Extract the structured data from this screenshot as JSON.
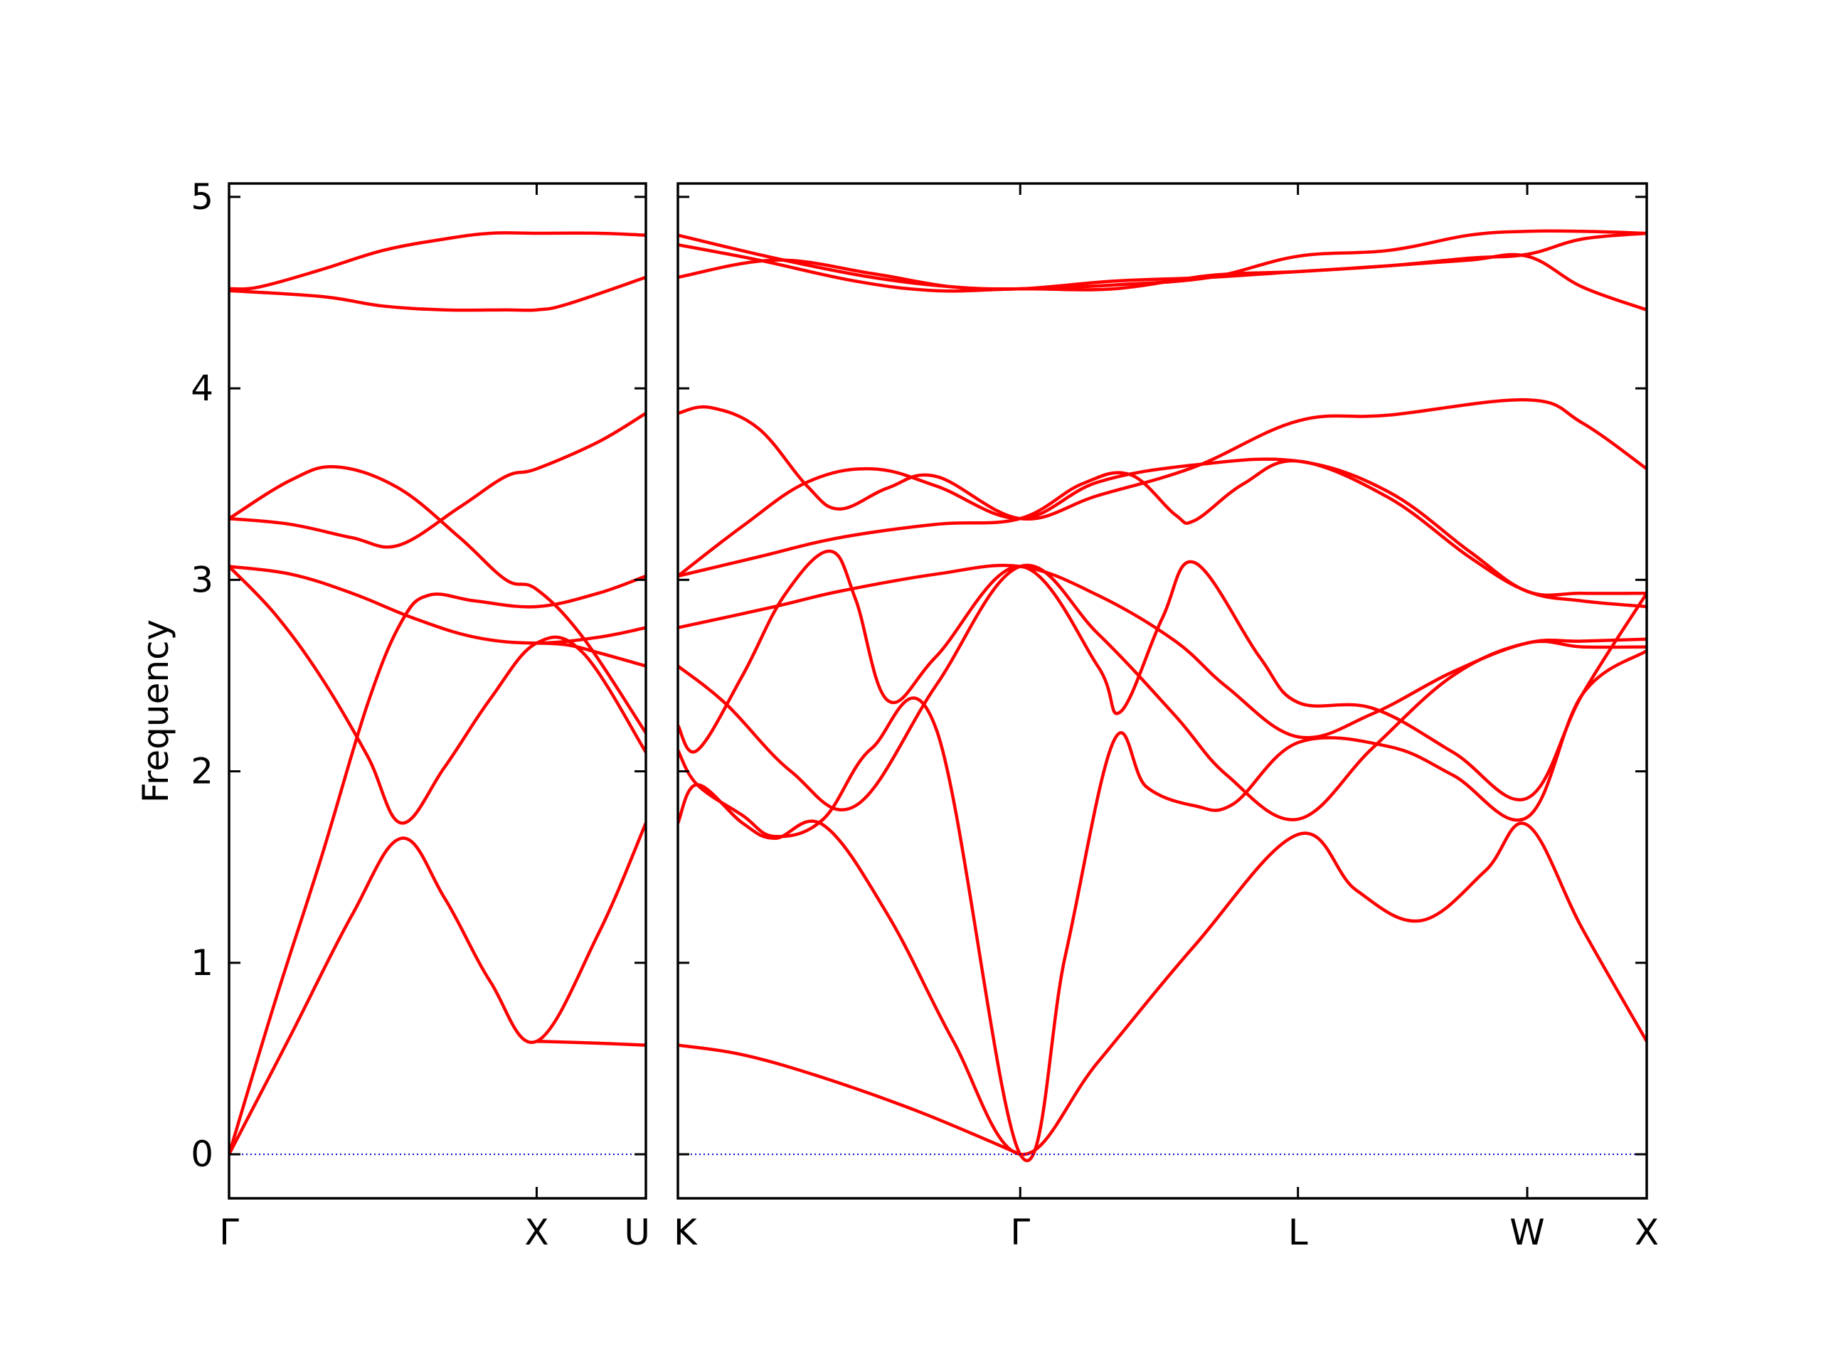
{
  "chart_data": {
    "type": "line",
    "title": "",
    "ylabel": "Frequency",
    "xlabel": "",
    "ylim": [
      -0.23,
      5.07
    ],
    "yticks": [
      0,
      1,
      2,
      3,
      4,
      5
    ],
    "grid": false,
    "legend": "none",
    "colors": {
      "bands": "#ff0000",
      "zero_line": "#0000cc",
      "axes": "#000000"
    },
    "panels": [
      {
        "xlim": [
          0,
          1.355
        ],
        "x_ticks": [
          {
            "x": 0,
            "label": "Γ"
          },
          {
            "x": 1.0,
            "label": "X"
          },
          {
            "x": 1.355,
            "label": "U"
          }
        ],
        "series": [
          {
            "x": [
              0,
              0.1,
              0.3,
              0.5,
              0.7,
              0.85,
              1.0,
              1.2,
              1.355
            ],
            "values": [
              4.52,
              4.53,
              4.62,
              4.72,
              4.78,
              4.81,
              4.81,
              4.81,
              4.8
            ]
          },
          {
            "x": [
              0,
              0.3,
              0.5,
              0.7,
              0.9,
              1.0,
              1.1,
              1.355
            ],
            "values": [
              4.51,
              4.48,
              4.43,
              4.41,
              4.41,
              4.41,
              4.44,
              4.58
            ]
          },
          {
            "x": [
              0,
              0.2,
              0.35,
              0.55,
              0.75,
              0.9,
              1.0,
              1.15,
              1.355
            ],
            "values": [
              3.32,
              3.52,
              3.59,
              3.48,
              3.22,
              3.0,
              2.95,
              2.7,
              2.2
            ]
          },
          {
            "x": [
              0,
              0.2,
              0.4,
              0.55,
              0.75,
              0.9,
              1.0,
              1.2,
              1.355
            ],
            "values": [
              3.32,
              3.29,
              3.22,
              3.18,
              3.38,
              3.54,
              3.58,
              3.72,
              3.87
            ]
          },
          {
            "x": [
              0,
              0.2,
              0.4,
              0.6,
              0.8,
              1.0,
              1.2,
              1.355
            ],
            "values": [
              3.07,
              3.03,
              2.93,
              2.8,
              2.7,
              2.67,
              2.7,
              2.75
            ]
          },
          {
            "x": [
              0,
              0.15,
              0.3,
              0.45,
              0.56,
              0.7,
              0.85,
              1.0,
              1.15,
              1.355
            ],
            "values": [
              3.07,
              2.82,
              2.49,
              2.08,
              1.73,
              2.02,
              2.38,
              2.67,
              2.62,
              2.1
            ]
          },
          {
            "x": [
              0,
              0.15,
              0.3,
              0.45,
              0.56,
              0.65,
              0.8,
              1.0,
              1.2,
              1.355
            ],
            "values": [
              0,
              0.8,
              1.55,
              2.35,
              2.78,
              2.92,
              2.89,
              2.86,
              2.93,
              3.02
            ]
          },
          {
            "x": [
              0,
              0.2,
              0.4,
              0.56,
              0.7,
              0.85,
              1.0,
              1.2,
              1.355
            ],
            "values": [
              0,
              0.62,
              1.25,
              1.65,
              1.34,
              0.9,
              0.59,
              1.15,
              1.73
            ]
          },
          {
            "x": [
              0,
              1.0,
              1.355
            ],
            "values": [
              0,
              0,
              0
            ]
          },
          {
            "x": [
              1.0,
              1.2,
              1.355
            ],
            "values": [
              0.59,
              0.58,
              0.57
            ]
          },
          {
            "x": [
              1.0,
              1.1,
              1.2,
              1.355
            ],
            "values": [
              2.67,
              2.66,
              2.62,
              2.55
            ]
          }
        ]
      },
      {
        "xlim": [
          0,
          3.0
        ],
        "x_ticks": [
          {
            "x": 0,
            "label": "K"
          },
          {
            "x": 1.06,
            "label": "Γ"
          },
          {
            "x": 1.92,
            "label": "L"
          },
          {
            "x": 2.63,
            "label": "W"
          },
          {
            "x": 3.0,
            "label": "X"
          }
        ],
        "series": [
          {
            "x": [
              0,
              0.3,
              0.6,
              0.85,
              1.06,
              1.35,
              1.65,
              1.92,
              2.2,
              2.45,
              2.63,
              2.8,
              3.0
            ],
            "values": [
              4.8,
              4.68,
              4.58,
              4.53,
              4.52,
              4.54,
              4.58,
              4.69,
              4.72,
              4.8,
              4.82,
              4.82,
              4.81
            ]
          },
          {
            "x": [
              0,
              0.25,
              0.55,
              0.8,
              1.06,
              1.35,
              1.65,
              1.92,
              2.2,
              2.45,
              2.63,
              2.8,
              3.0
            ],
            "values": [
              4.75,
              4.67,
              4.56,
              4.51,
              4.52,
              4.52,
              4.59,
              4.61,
              4.64,
              4.68,
              4.7,
              4.78,
              4.81
            ]
          },
          {
            "x": [
              0,
              0.3,
              0.6,
              0.85,
              1.06,
              1.35,
              1.65,
              1.92,
              2.2,
              2.45,
              2.63,
              2.8,
              3.0
            ],
            "values": [
              4.58,
              4.67,
              4.6,
              4.53,
              4.52,
              4.56,
              4.58,
              4.61,
              4.64,
              4.67,
              4.69,
              4.53,
              4.41
            ]
          },
          {
            "x": [
              0,
              0.1,
              0.25,
              0.4,
              0.5,
              0.65,
              0.8,
              1.06,
              1.3,
              1.6,
              1.92,
              2.2,
              2.63,
              2.8,
              3.0
            ],
            "values": [
              3.87,
              3.9,
              3.79,
              3.49,
              3.37,
              3.48,
              3.54,
              3.32,
              3.44,
              3.59,
              3.83,
              3.86,
              3.94,
              3.82,
              3.58
            ]
          },
          {
            "x": [
              0,
              0.2,
              0.4,
              0.6,
              0.8,
              1.06,
              1.3,
              1.6,
              1.92,
              2.2,
              2.45,
              2.63,
              2.8,
              3.0
            ],
            "values": [
              3.02,
              3.28,
              3.51,
              3.58,
              3.49,
              3.32,
              3.51,
              3.6,
              3.62,
              3.46,
              3.15,
              2.94,
              2.93,
              2.93
            ]
          },
          {
            "x": [
              0,
              0.25,
              0.5,
              0.8,
              1.06,
              1.25,
              1.4,
              1.54,
              1.6,
              1.75,
              1.92,
              2.2,
              2.45,
              2.63,
              2.8,
              3.0
            ],
            "values": [
              3.02,
              3.12,
              3.22,
              3.29,
              3.32,
              3.5,
              3.55,
              3.34,
              3.31,
              3.5,
              3.62,
              3.43,
              3.12,
              2.94,
              2.89,
              2.86
            ]
          },
          {
            "x": [
              0,
              0.3,
              0.5,
              0.8,
              1.06,
              1.3,
              1.54,
              1.7,
              1.92,
              2.15,
              2.4,
              2.63,
              2.8,
              3.0
            ],
            "values": [
              2.75,
              2.86,
              2.94,
              3.03,
              3.07,
              2.92,
              2.68,
              2.44,
              2.18,
              2.3,
              2.52,
              2.67,
              2.68,
              2.69
            ]
          },
          {
            "x": [
              0,
              0.06,
              0.2,
              0.33,
              0.47,
              0.55,
              0.65,
              0.8,
              1.06,
              1.3,
              1.37,
              1.5,
              1.6,
              1.8,
              1.92,
              2.15,
              2.4,
              2.63,
              2.8,
              3.0
            ],
            "values": [
              2.24,
              2.11,
              2.5,
              2.92,
              3.15,
              2.9,
              2.37,
              2.6,
              3.07,
              2.55,
              2.31,
              2.8,
              3.09,
              2.6,
              2.36,
              2.33,
              2.1,
              1.86,
              2.4,
              2.93
            ]
          },
          {
            "x": [
              0,
              0.15,
              0.35,
              0.55,
              0.8,
              1.06,
              1.3,
              1.54,
              1.7,
              1.92,
              2.15,
              2.4,
              2.63,
              2.8,
              3.0
            ],
            "values": [
              2.55,
              2.35,
              2.0,
              1.82,
              2.45,
              3.07,
              2.72,
              2.29,
              1.98,
              1.75,
              2.12,
              2.5,
              2.67,
              2.65,
              2.65
            ]
          },
          {
            "x": [
              0,
              0.06,
              0.2,
              0.3,
              0.45,
              0.6,
              0.8,
              1.06,
              1.2,
              1.35,
              1.45,
              1.6,
              1.72,
              1.92,
              2.2,
              2.4,
              2.63,
              2.8,
              3.0
            ],
            "values": [
              2.11,
              1.93,
              1.77,
              1.66,
              1.75,
              2.12,
              2.22,
              0.0,
              1.04,
              2.16,
              1.92,
              1.82,
              1.83,
              2.15,
              2.13,
              1.98,
              1.76,
              2.4,
              2.63
            ]
          },
          {
            "x": [
              0,
              0.06,
              0.2,
              0.3,
              0.45,
              0.65,
              0.85,
              1.06,
              1.3,
              1.6,
              1.92,
              2.1,
              2.3,
              2.5,
              2.63,
              2.8,
              3.0
            ],
            "values": [
              1.73,
              1.93,
              1.73,
              1.65,
              1.72,
              1.25,
              0.6,
              0.0,
              0.48,
              1.09,
              1.67,
              1.38,
              1.22,
              1.48,
              1.72,
              1.18,
              0.59
            ]
          },
          {
            "x": [
              0,
              0.2,
              0.45,
              0.75,
              1.06
            ],
            "values": [
              0.57,
              0.52,
              0.4,
              0.22,
              0.0
            ]
          },
          {
            "x": [
              0,
              1.06,
              1.92,
              2.63,
              3.0
            ],
            "values": [
              0,
              0,
              0,
              0,
              0
            ]
          }
        ]
      }
    ]
  }
}
